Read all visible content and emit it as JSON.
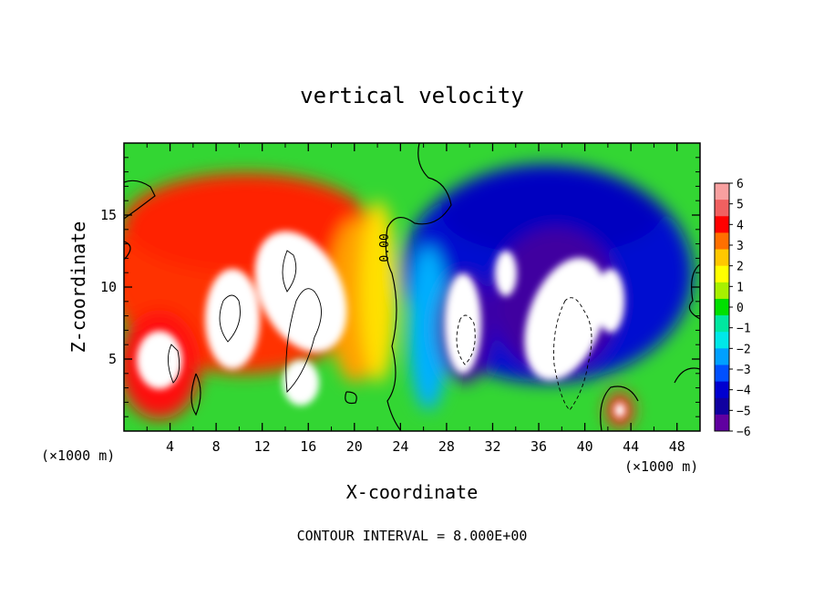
{
  "chart_data": {
    "type": "heatmap",
    "title": "vertical velocity",
    "xlabel": "X-coordinate",
    "ylabel": "Z-coordinate",
    "x_unit": "(×1000 m)",
    "x_unit_repeat": "(×1000 m)",
    "footer": "CONTOUR INTERVAL = 8.000E+00",
    "contour_label": "0.00",
    "xlim": [
      0,
      50
    ],
    "ylim": [
      0,
      20
    ],
    "xticks": [
      "4",
      "8",
      "12",
      "16",
      "20",
      "24",
      "28",
      "32",
      "36",
      "40",
      "44",
      "48"
    ],
    "yticks": [
      "5",
      "10",
      "15"
    ],
    "colorbar": {
      "labels": [
        "6",
        "5",
        "4",
        "3",
        "2",
        "1",
        "0",
        "−1",
        "−2",
        "−3",
        "−4",
        "−5",
        "−6"
      ],
      "range": [
        -6,
        6
      ],
      "colors": [
        "#f8a0a0",
        "#f06060",
        "#ff0000",
        "#ff7000",
        "#ffc800",
        "#ffff00",
        "#a8f000",
        "#00e000",
        "#00e8a0",
        "#00e8e8",
        "#00a0ff",
        "#0050ff",
        "#0000d0",
        "#1000a0",
        "#6000a0"
      ]
    },
    "features": [
      {
        "kind": "updraft",
        "x": 6,
        "z": 4,
        "value": 12
      },
      {
        "kind": "updraft",
        "x": 10,
        "z": 8,
        "value": 12
      },
      {
        "kind": "updraft",
        "x": 15,
        "z": 9,
        "value": 14
      },
      {
        "kind": "downdraft",
        "x": 30,
        "z": 7,
        "value": -12
      },
      {
        "kind": "downdraft",
        "x": 34,
        "z": 11,
        "value": -10
      },
      {
        "kind": "downdraft",
        "x": 39,
        "z": 6,
        "value": -14
      },
      {
        "kind": "updraft",
        "x": 43,
        "z": 1.5,
        "value": 6
      }
    ]
  }
}
